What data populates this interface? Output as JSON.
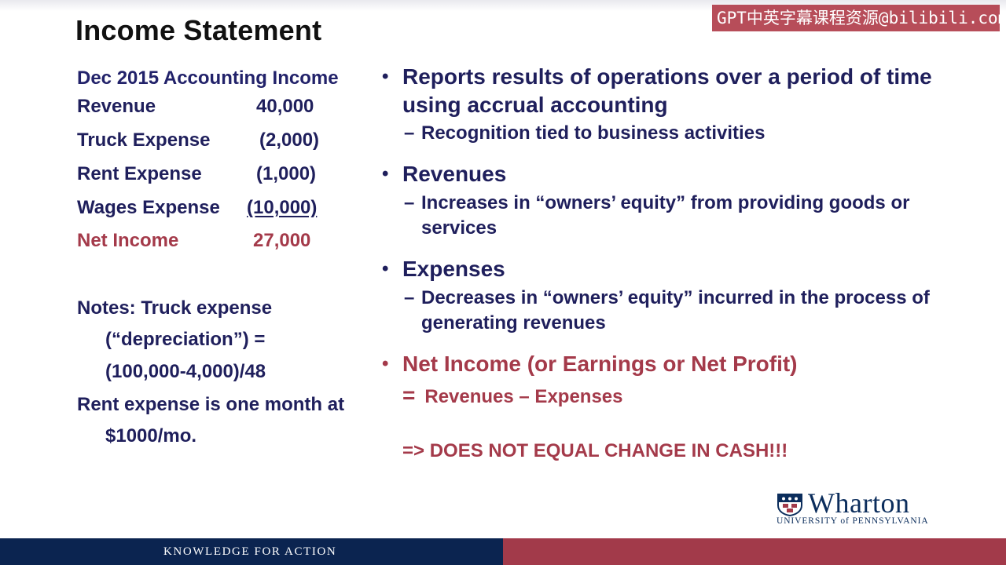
{
  "title": "Income Statement",
  "watermark": "GPT中英字幕课程资源@bilibili.com",
  "statement": {
    "heading": "Dec 2015 Accounting Income",
    "rows": [
      {
        "label": "Revenue",
        "value": "40,000"
      },
      {
        "label": "Truck Expense",
        "value": "(2,000)"
      },
      {
        "label": "Rent Expense",
        "value": "(1,000)"
      },
      {
        "label": "Wages Expense",
        "value": "(10,000)"
      },
      {
        "label": "Net Income",
        "value": "27,000"
      }
    ]
  },
  "notes": {
    "line1": "Notes: Truck expense",
    "line2": "(“depreciation”) =",
    "line3": "(100,000-4,000)/48",
    "line4": "Rent expense is one month at",
    "line5": "$1000/mo."
  },
  "bullets": [
    {
      "text": "Reports results of operations over a period of time using accrual accounting",
      "sub": "Recognition tied to business activities"
    },
    {
      "text": "Revenues",
      "sub": "Increases in “owners’ equity” from providing goods or services"
    },
    {
      "text": "Expenses",
      "sub": "Decreases in “owners’ equity” incurred in the process of generating revenues"
    },
    {
      "text": "Net Income (or Earnings or Net Profit)"
    }
  ],
  "formula": {
    "eq": "=",
    "text": "Revenues – Expenses"
  },
  "warning": "=> DOES NOT EQUAL CHANGE IN CASH!!!",
  "logo": {
    "name": "Wharton",
    "sub": "UNIVERSITY of PENNSYLVANIA"
  },
  "footer": {
    "text": "KNOWLEDGE FOR ACTION"
  },
  "colors": {
    "navy": "#0b2450",
    "accent_red": "#a43a4a",
    "text_blue": "#1f1f5c"
  }
}
